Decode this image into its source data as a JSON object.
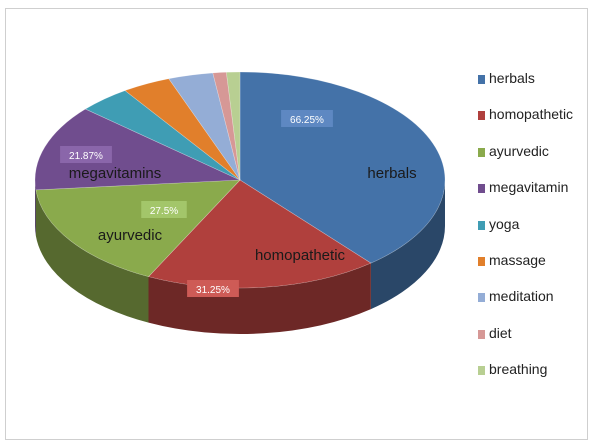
{
  "chart_data": {
    "type": "pie",
    "title": "",
    "categories": [
      "herbals",
      "homopathetic",
      "ayurvedic",
      "megavitamin",
      "yoga",
      "massage",
      "meditation",
      "diet",
      "breathing"
    ],
    "values": [
      66.25,
      31.25,
      27.5,
      21.87,
      7.0,
      6.5,
      6.0,
      1.8,
      1.8
    ],
    "colors": [
      "#4472A8",
      "#B0403D",
      "#8AAA4C",
      "#704D8E",
      "#3F9DB4",
      "#E17F2B",
      "#94ADD6",
      "#D69896",
      "#B8CF92"
    ],
    "slice_labels": [
      "herbals",
      "homopathetic",
      "ayurvedic",
      "megavitamins",
      "",
      "",
      "",
      "",
      ""
    ],
    "value_labels": [
      "66.25%",
      "31.25%",
      "27.5%",
      "21.87%",
      "",
      "",
      "",
      "",
      ""
    ],
    "legend_position": "right",
    "style": "3d-pie"
  }
}
